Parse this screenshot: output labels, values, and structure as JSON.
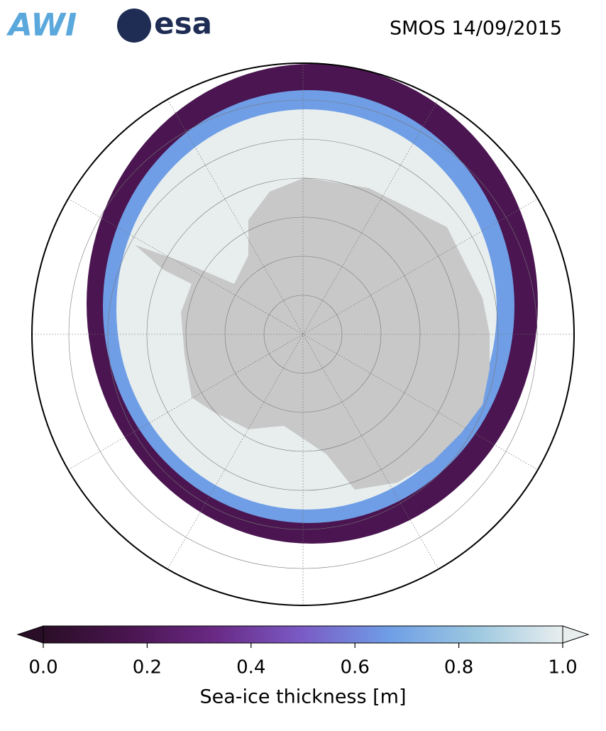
{
  "header": {
    "logos": [
      "AWI",
      "esa"
    ],
    "title": "SMOS 14/09/2015"
  },
  "colorbar": {
    "label": "Sea-ice thickness [m]",
    "lim": [
      0,
      1
    ],
    "ticks": [
      {
        "value": 0,
        "label": "0.0"
      },
      0.2,
      0.4,
      0.6,
      0.8,
      {
        "value": 1,
        "label": "1.0"
      }
    ],
    "colors": [
      "#2a0e27",
      "#4a1550",
      "#6a2a86",
      "#7a5cc6",
      "#6f9ee6",
      "#9cc8e0",
      "#e8eeee"
    ],
    "extend": "both"
  }
}
